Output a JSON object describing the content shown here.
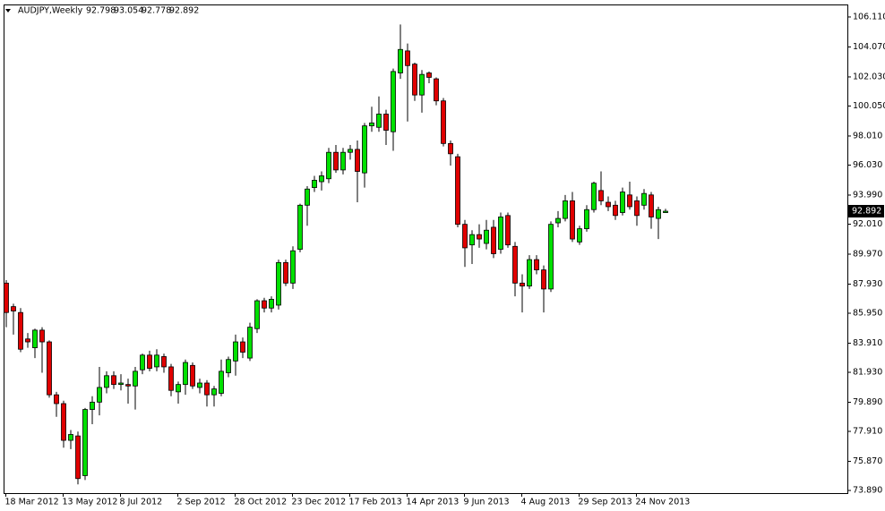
{
  "chart_data": {
    "type": "candlestick",
    "title": "AUDJPY,Weekly",
    "categories": [
      "18 Mar 2012",
      null,
      null,
      null,
      null,
      null,
      null,
      null,
      "13 May 2012",
      null,
      null,
      null,
      null,
      null,
      null,
      null,
      "8 Jul 2012",
      null,
      null,
      null,
      null,
      null,
      null,
      null,
      "2 Sep 2012",
      null,
      null,
      null,
      null,
      null,
      null,
      null,
      "28 Oct 2012",
      null,
      null,
      null,
      null,
      null,
      null,
      null,
      "23 Dec 2012",
      null,
      null,
      null,
      null,
      null,
      null,
      null,
      "17 Feb 2013",
      null,
      null,
      null,
      null,
      null,
      null,
      null,
      "14 Apr 2013",
      null,
      null,
      null,
      null,
      null,
      null,
      null,
      "9 Jun 2013",
      null,
      null,
      null,
      null,
      null,
      null,
      null,
      "4 Aug 2013",
      null,
      null,
      null,
      null,
      null,
      null,
      null,
      "29 Sep 2013",
      null,
      null,
      null,
      null,
      null,
      null,
      null,
      "24 Nov 2013",
      null,
      null,
      null,
      null
    ],
    "open": [
      88.0,
      86.4,
      86.0,
      84.2,
      83.6,
      84.8,
      84.0,
      80.4,
      79.8,
      77.3,
      77.6,
      74.9,
      79.4,
      79.9,
      80.9,
      81.7,
      81.1,
      81.1,
      81.0,
      82.1,
      83.1,
      82.3,
      83.0,
      82.3,
      80.6,
      81.1,
      82.4,
      80.9,
      81.2,
      80.4,
      80.5,
      81.9,
      82.7,
      84.0,
      82.9,
      84.9,
      86.8,
      86.3,
      86.5,
      89.4,
      88.0,
      90.3,
      93.3,
      94.5,
      94.9,
      95.1,
      96.9,
      95.7,
      96.9,
      97.1,
      95.5,
      98.7,
      98.6,
      99.5,
      98.3,
      102.3,
      103.8,
      102.9,
      100.8,
      102.3,
      101.9,
      100.4,
      97.5,
      96.6,
      92.0,
      90.6,
      91.3,
      90.7,
      91.8,
      90.3,
      92.6,
      90.5,
      88.0,
      87.8,
      89.6,
      88.9,
      87.6,
      92.1,
      92.4,
      93.6,
      90.8,
      91.7,
      93.0,
      94.3,
      93.5,
      93.3,
      92.8,
      94.0,
      93.6,
      93.3,
      94.0,
      92.4,
      92.798
    ],
    "high": [
      88.2,
      86.6,
      86.3,
      84.6,
      84.9,
      85.0,
      84.1,
      80.6,
      80.0,
      78.0,
      77.9,
      79.5,
      80.3,
      82.3,
      82.0,
      82.0,
      81.8,
      81.5,
      82.3,
      83.2,
      83.4,
      83.5,
      83.2,
      82.5,
      81.3,
      82.8,
      82.6,
      81.5,
      81.4,
      81.0,
      82.8,
      83.0,
      84.5,
      84.3,
      85.3,
      86.9,
      87.0,
      87.1,
      89.6,
      89.6,
      90.5,
      93.4,
      94.6,
      95.3,
      95.6,
      97.2,
      97.4,
      97.2,
      97.4,
      97.7,
      98.9,
      100.0,
      100.7,
      99.8,
      102.6,
      105.6,
      104.3,
      103.0,
      102.5,
      102.4,
      102.0,
      100.6,
      97.7,
      96.8,
      92.3,
      91.6,
      92.0,
      92.3,
      92.3,
      92.8,
      92.8,
      90.8,
      88.6,
      89.9,
      89.9,
      89.2,
      92.2,
      92.9,
      94.0,
      94.2,
      91.9,
      93.3,
      94.9,
      95.6,
      93.9,
      93.6,
      94.5,
      94.9,
      93.9,
      94.4,
      94.2,
      93.2,
      93.054
    ],
    "low": [
      85.0,
      84.5,
      83.3,
      83.6,
      82.9,
      81.9,
      80.2,
      78.9,
      76.8,
      76.7,
      74.3,
      74.6,
      78.4,
      79.0,
      80.5,
      80.8,
      80.7,
      79.8,
      79.4,
      81.8,
      82.0,
      82.0,
      81.9,
      80.3,
      79.8,
      80.4,
      80.8,
      80.5,
      79.6,
      79.6,
      80.3,
      81.6,
      81.7,
      82.9,
      82.7,
      84.6,
      86.0,
      86.0,
      86.2,
      87.8,
      87.6,
      90.1,
      91.9,
      94.2,
      94.3,
      94.8,
      95.5,
      95.4,
      96.4,
      93.5,
      94.5,
      98.3,
      98.3,
      97.4,
      97.0,
      101.9,
      99.0,
      100.4,
      99.6,
      101.6,
      100.1,
      97.3,
      96.0,
      91.8,
      89.1,
      89.3,
      90.4,
      90.3,
      89.7,
      90.0,
      90.4,
      87.1,
      86.0,
      87.6,
      88.6,
      86.0,
      87.4,
      91.8,
      92.2,
      90.8,
      90.6,
      91.5,
      92.8,
      93.3,
      92.9,
      92.3,
      92.6,
      93.0,
      91.9,
      93.0,
      91.7,
      91.0,
      92.778
    ],
    "close": [
      86.0,
      86.1,
      83.5,
      84.0,
      84.8,
      84.0,
      80.4,
      79.8,
      77.3,
      77.7,
      74.7,
      79.4,
      79.9,
      80.9,
      81.7,
      81.1,
      81.2,
      81.0,
      82.0,
      83.1,
      82.2,
      83.1,
      82.3,
      80.7,
      81.1,
      82.6,
      81.0,
      81.2,
      80.4,
      80.8,
      82.0,
      82.8,
      84.0,
      83.3,
      85.0,
      86.8,
      86.3,
      86.9,
      89.4,
      88.0,
      90.2,
      93.3,
      94.4,
      95.0,
      95.3,
      96.9,
      95.7,
      96.9,
      97.1,
      95.6,
      98.7,
      98.9,
      99.5,
      98.4,
      102.4,
      103.9,
      102.8,
      100.8,
      102.2,
      102.0,
      100.4,
      97.5,
      96.8,
      92.0,
      90.4,
      91.3,
      91.0,
      91.6,
      90.0,
      92.5,
      90.6,
      88.0,
      87.8,
      89.6,
      88.9,
      87.6,
      92.0,
      92.4,
      93.6,
      91.0,
      91.7,
      93.0,
      94.8,
      93.6,
      93.2,
      92.6,
      94.2,
      93.2,
      92.6,
      94.1,
      92.5,
      93.0,
      92.892
    ],
    "up_color": "#00e000",
    "down_color": "#e00000",
    "wick_color": "#000000",
    "ylim": [
      73.71,
      106.96
    ],
    "yticks": [
      {
        "value": 106.11,
        "label": "106.110"
      },
      {
        "value": 104.07,
        "label": "104.070"
      },
      {
        "value": 102.03,
        "label": "102.030"
      },
      {
        "value": 100.05,
        "label": "100.050"
      },
      {
        "value": 98.01,
        "label": "98.010"
      },
      {
        "value": 96.03,
        "label": "96.030"
      },
      {
        "value": 93.99,
        "label": "93.990"
      },
      {
        "value": 92.01,
        "label": "92.010"
      },
      {
        "value": 89.97,
        "label": "89.970"
      },
      {
        "value": 87.93,
        "label": "87.930"
      },
      {
        "value": 85.95,
        "label": "85.950"
      },
      {
        "value": 83.91,
        "label": "83.910"
      },
      {
        "value": 81.93,
        "label": "81.930"
      },
      {
        "value": 79.89,
        "label": "79.890"
      },
      {
        "value": 77.91,
        "label": "77.910"
      },
      {
        "value": 75.87,
        "label": "75.870"
      },
      {
        "value": 73.89,
        "label": "73.890"
      }
    ]
  }
}
